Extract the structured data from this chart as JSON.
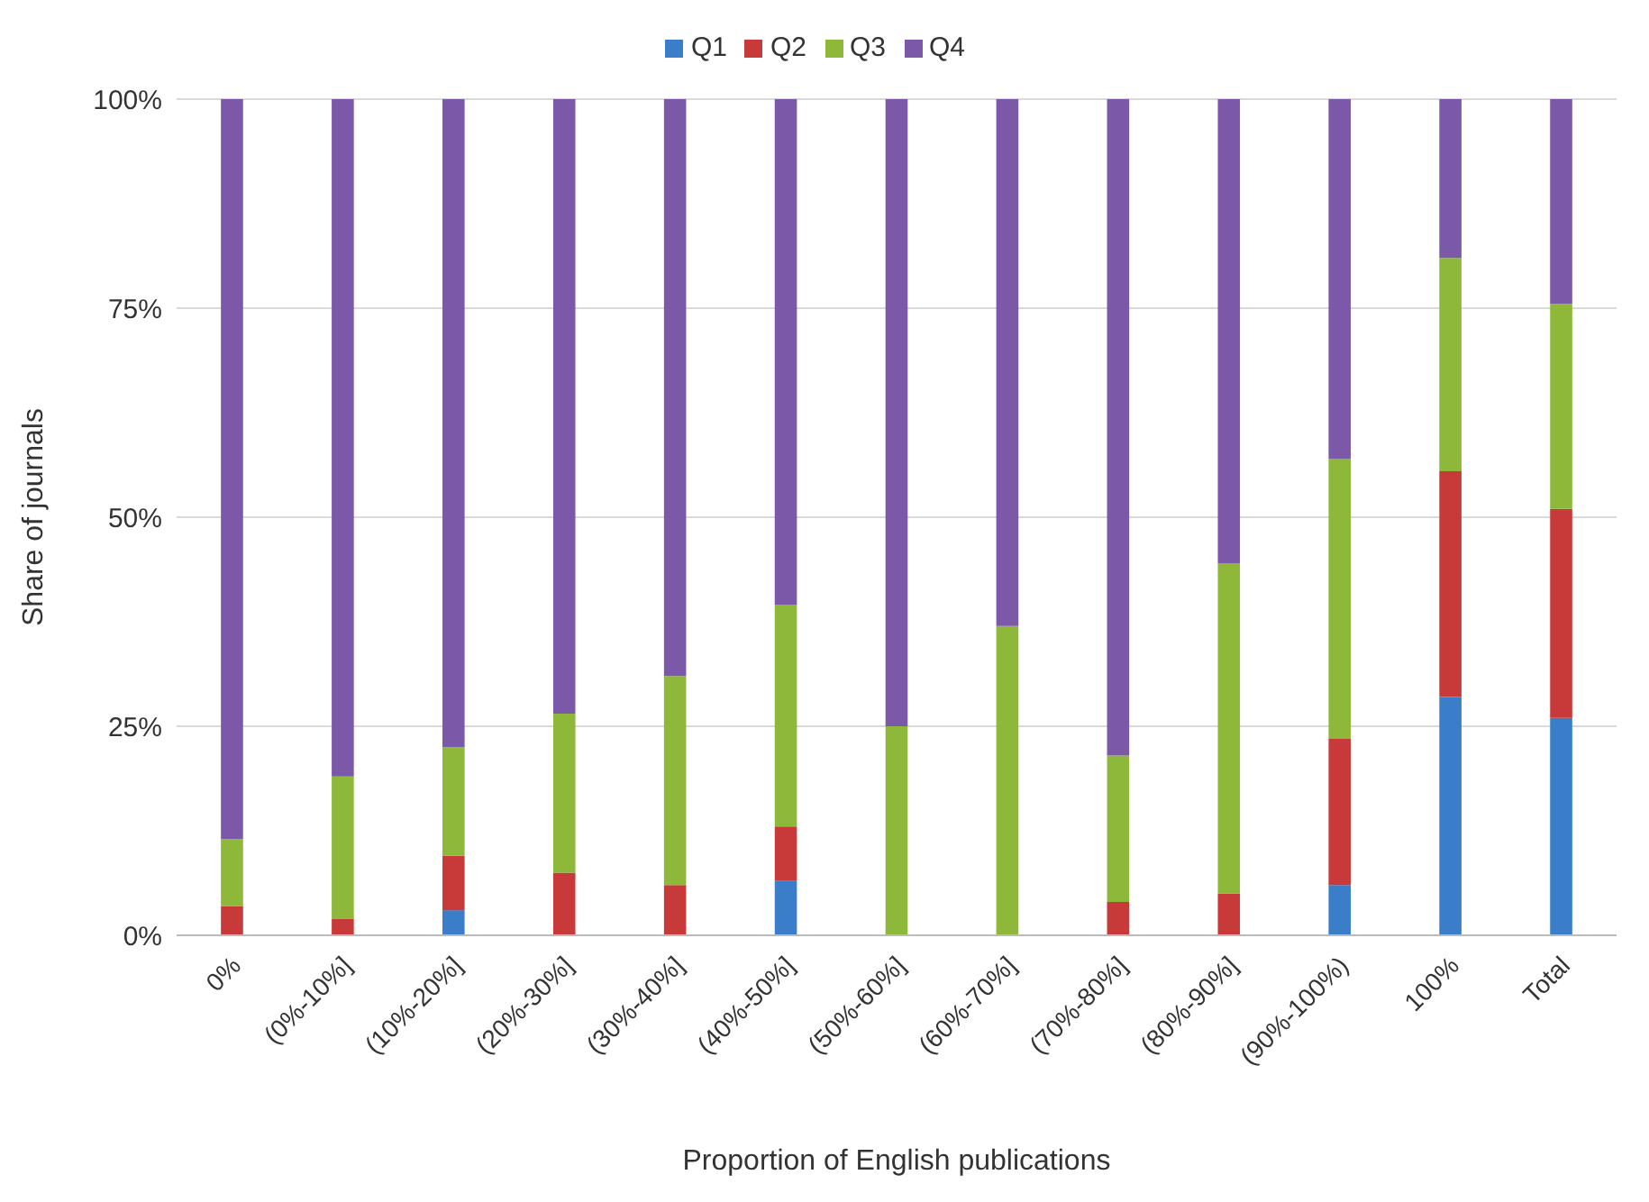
{
  "chart_data": {
    "type": "bar",
    "stacked": true,
    "xlabel": "Proportion of English publications",
    "ylabel": "Share of journals",
    "categories": [
      "0%",
      "(0%-10%]",
      "(10%-20%]",
      "(20%-30%]",
      "(30%-40%]",
      "(40%-50%]",
      "(50%-60%]",
      "(60%-70%]",
      "(70%-80%]",
      "(80%-90%]",
      "(90%-100%)",
      "100%",
      "Total"
    ],
    "series": [
      {
        "name": "Q1",
        "color": "#3a7dc9",
        "values": [
          0,
          0,
          3,
          0,
          0,
          6.5,
          0,
          0,
          0,
          0,
          6,
          28.5,
          26
        ]
      },
      {
        "name": "Q2",
        "color": "#c83a3a",
        "values": [
          3.5,
          2,
          6.5,
          7.5,
          6,
          6.5,
          0,
          0,
          4,
          5,
          17.5,
          27,
          25
        ]
      },
      {
        "name": "Q3",
        "color": "#8db83a",
        "values": [
          8,
          17,
          13,
          19,
          25,
          26.5,
          25,
          37,
          17.5,
          39.5,
          33.5,
          25.5,
          24.5
        ]
      },
      {
        "name": "Q4",
        "color": "#7b58a8",
        "values": [
          88.5,
          81,
          77.5,
          73.5,
          69,
          60.5,
          75,
          63,
          78.5,
          55.5,
          43,
          19,
          24.5
        ]
      }
    ],
    "ylim": [
      0,
      100
    ],
    "yticks": [
      {
        "value": 0,
        "label": "0%"
      },
      {
        "value": 25,
        "label": "25%"
      },
      {
        "value": 50,
        "label": "50%"
      },
      {
        "value": 75,
        "label": "75%"
      },
      {
        "value": 100,
        "label": "100%"
      }
    ],
    "grid": "y",
    "legend": "top"
  }
}
